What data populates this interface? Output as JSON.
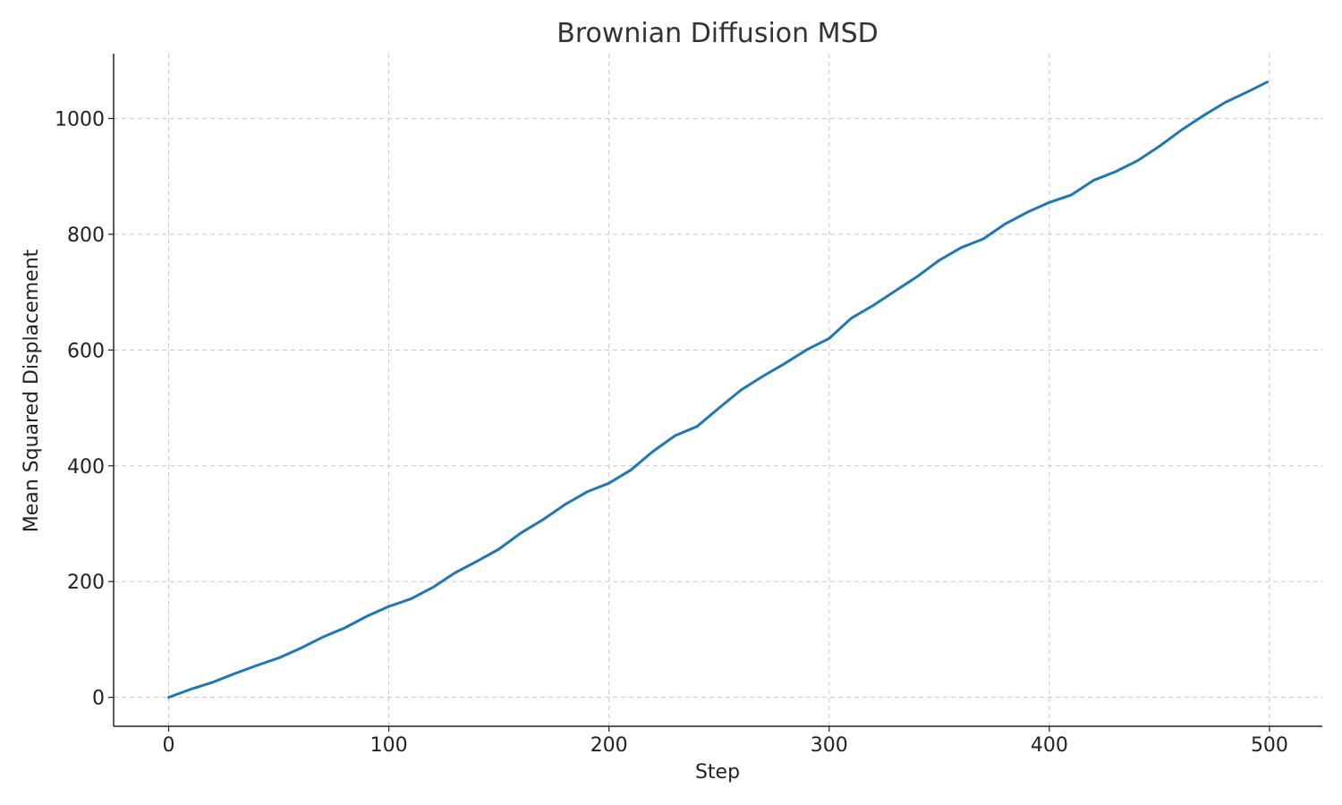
{
  "chart_data": {
    "type": "line",
    "title": "Brownian Diffusion MSD",
    "xlabel": "Step",
    "ylabel": "Mean Squared Displacement",
    "xlim": [
      -25,
      524
    ],
    "ylim": [
      -50,
      1112
    ],
    "xticks": [
      0,
      100,
      200,
      300,
      400,
      500
    ],
    "yticks": [
      0,
      200,
      400,
      600,
      800,
      1000
    ],
    "grid": true,
    "series": [
      {
        "color": "#1f77b4",
        "x": [
          0,
          10,
          20,
          30,
          40,
          50,
          60,
          70,
          80,
          90,
          100,
          110,
          120,
          130,
          140,
          150,
          160,
          170,
          180,
          190,
          200,
          210,
          220,
          230,
          240,
          250,
          260,
          270,
          280,
          290,
          300,
          310,
          320,
          330,
          340,
          350,
          360,
          370,
          380,
          390,
          400,
          410,
          420,
          430,
          440,
          450,
          460,
          470,
          480,
          490,
          499
        ],
        "y": [
          0,
          14,
          26,
          41,
          55,
          68,
          85,
          104,
          120,
          140,
          157,
          170,
          190,
          215,
          235,
          256,
          284,
          307,
          333,
          355,
          370,
          393,
          425,
          452,
          468,
          500,
          531,
          555,
          577,
          601,
          620,
          655,
          677,
          702,
          727,
          755,
          777,
          792,
          818,
          838,
          855,
          868,
          893,
          908,
          927,
          952,
          980,
          1005,
          1028,
          1046,
          1063
        ]
      }
    ]
  }
}
